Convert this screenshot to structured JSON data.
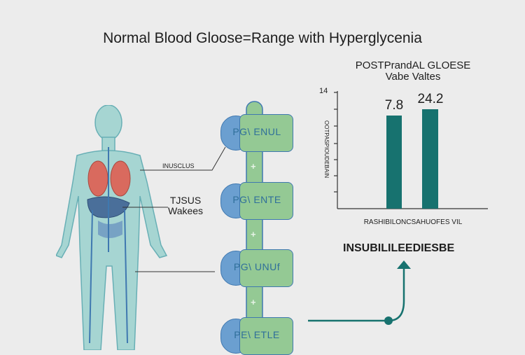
{
  "title": "Normal Blood Gloose=Range with Hyperglycenia",
  "labels": {
    "insulin": "INUSCLUS",
    "tissue_line1": "TJSUS",
    "tissue_line2": "Wakees"
  },
  "chain": [
    {
      "label": "PG\\ ENUL"
    },
    {
      "label": "PG\\ ENTE"
    },
    {
      "label": "PG\\ UNUf"
    },
    {
      "label": "PE\\ ETLE"
    }
  ],
  "chart_data": {
    "type": "bar",
    "title": "POSTPrandAL GLOESE Vabe Valtes",
    "title_line1": "POSTPrandAL GLOESE",
    "title_line2": "Vabe Valtes",
    "ylabel": "OOTPASPIOUDEBAIN",
    "xlabel": "RASHIBILONCSAHUOFES VIL",
    "ytick_top": "14",
    "values": [
      7.8,
      24.2
    ],
    "value_labels": [
      "7.8",
      "24.2"
    ],
    "bar_color": "#17726f"
  },
  "footer_label": "INSUBILILEEDIESBE",
  "colors": {
    "body": "#8fc9c9",
    "chain_green": "#94c994",
    "chain_blue": "#6b9fd0",
    "accent": "#17726f"
  }
}
